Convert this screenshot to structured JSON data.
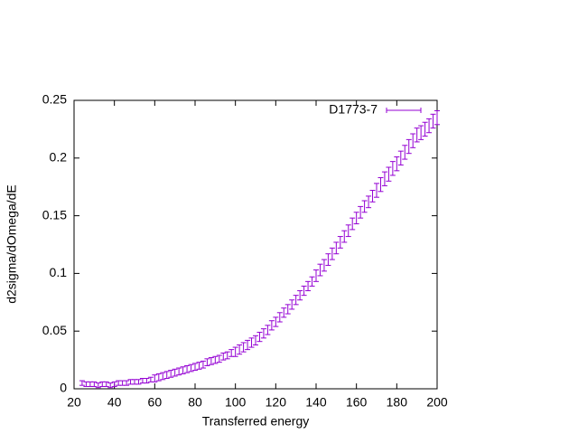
{
  "chart_data": {
    "type": "errorbar",
    "xlabel": "Transferred energy",
    "ylabel": "d2sigma/dOmega/dE",
    "xlim": [
      20,
      200
    ],
    "xticks": [
      20,
      40,
      60,
      80,
      100,
      120,
      140,
      160,
      180,
      200
    ],
    "ylim": [
      0,
      0.25
    ],
    "yticks": [
      0,
      0.05,
      0.1,
      0.15,
      0.2,
      0.25
    ],
    "legend": "top-right",
    "x": [
      24,
      26,
      28,
      30,
      32,
      34,
      36,
      38,
      40,
      42,
      44,
      46,
      48,
      50,
      52,
      54,
      56,
      58,
      60,
      62,
      64,
      66,
      68,
      70,
      72,
      74,
      76,
      78,
      80,
      82,
      84,
      86,
      88,
      90,
      92,
      94,
      96,
      98,
      100,
      102,
      104,
      106,
      108,
      110,
      112,
      114,
      116,
      118,
      120,
      122,
      124,
      126,
      128,
      130,
      132,
      134,
      136,
      138,
      140,
      142,
      144,
      146,
      148,
      150,
      152,
      154,
      156,
      158,
      160,
      162,
      164,
      166,
      168,
      170,
      172,
      174,
      176,
      178,
      180,
      182,
      184,
      186,
      188,
      190,
      192,
      194,
      196,
      198,
      200
    ],
    "series": [
      {
        "name": "D1773-7",
        "color": "#9400d3",
        "values": [
          0.005,
          0.004,
          0.004,
          0.004,
          0.003,
          0.004,
          0.004,
          0.003,
          0.004,
          0.005,
          0.005,
          0.005,
          0.006,
          0.006,
          0.006,
          0.007,
          0.007,
          0.008,
          0.009,
          0.01,
          0.011,
          0.012,
          0.013,
          0.014,
          0.015,
          0.016,
          0.017,
          0.018,
          0.019,
          0.02,
          0.021,
          0.023,
          0.024,
          0.025,
          0.026,
          0.028,
          0.029,
          0.031,
          0.032,
          0.034,
          0.036,
          0.038,
          0.04,
          0.042,
          0.045,
          0.048,
          0.051,
          0.055,
          0.058,
          0.062,
          0.066,
          0.069,
          0.073,
          0.077,
          0.081,
          0.085,
          0.089,
          0.093,
          0.098,
          0.103,
          0.107,
          0.112,
          0.117,
          0.122,
          0.127,
          0.132,
          0.137,
          0.143,
          0.148,
          0.153,
          0.158,
          0.162,
          0.167,
          0.172,
          0.177,
          0.182,
          0.186,
          0.191,
          0.195,
          0.2,
          0.205,
          0.21,
          0.215,
          0.22,
          0.222,
          0.225,
          0.228,
          0.232,
          0.235
        ],
        "errors": [
          0.002,
          0.002,
          0.002,
          0.002,
          0.002,
          0.002,
          0.002,
          0.002,
          0.002,
          0.002,
          0.002,
          0.002,
          0.002,
          0.002,
          0.002,
          0.002,
          0.002,
          0.002,
          0.003,
          0.003,
          0.003,
          0.003,
          0.003,
          0.003,
          0.003,
          0.003,
          0.003,
          0.003,
          0.003,
          0.003,
          0.003,
          0.003,
          0.003,
          0.003,
          0.003,
          0.003,
          0.003,
          0.003,
          0.004,
          0.004,
          0.004,
          0.004,
          0.004,
          0.004,
          0.004,
          0.004,
          0.004,
          0.004,
          0.004,
          0.004,
          0.004,
          0.004,
          0.004,
          0.004,
          0.004,
          0.004,
          0.004,
          0.004,
          0.005,
          0.005,
          0.005,
          0.005,
          0.005,
          0.005,
          0.005,
          0.005,
          0.005,
          0.005,
          0.005,
          0.005,
          0.005,
          0.005,
          0.005,
          0.006,
          0.006,
          0.006,
          0.006,
          0.006,
          0.006,
          0.006,
          0.006,
          0.006,
          0.006,
          0.006,
          0.006,
          0.006,
          0.006,
          0.006,
          0.006
        ]
      }
    ]
  }
}
